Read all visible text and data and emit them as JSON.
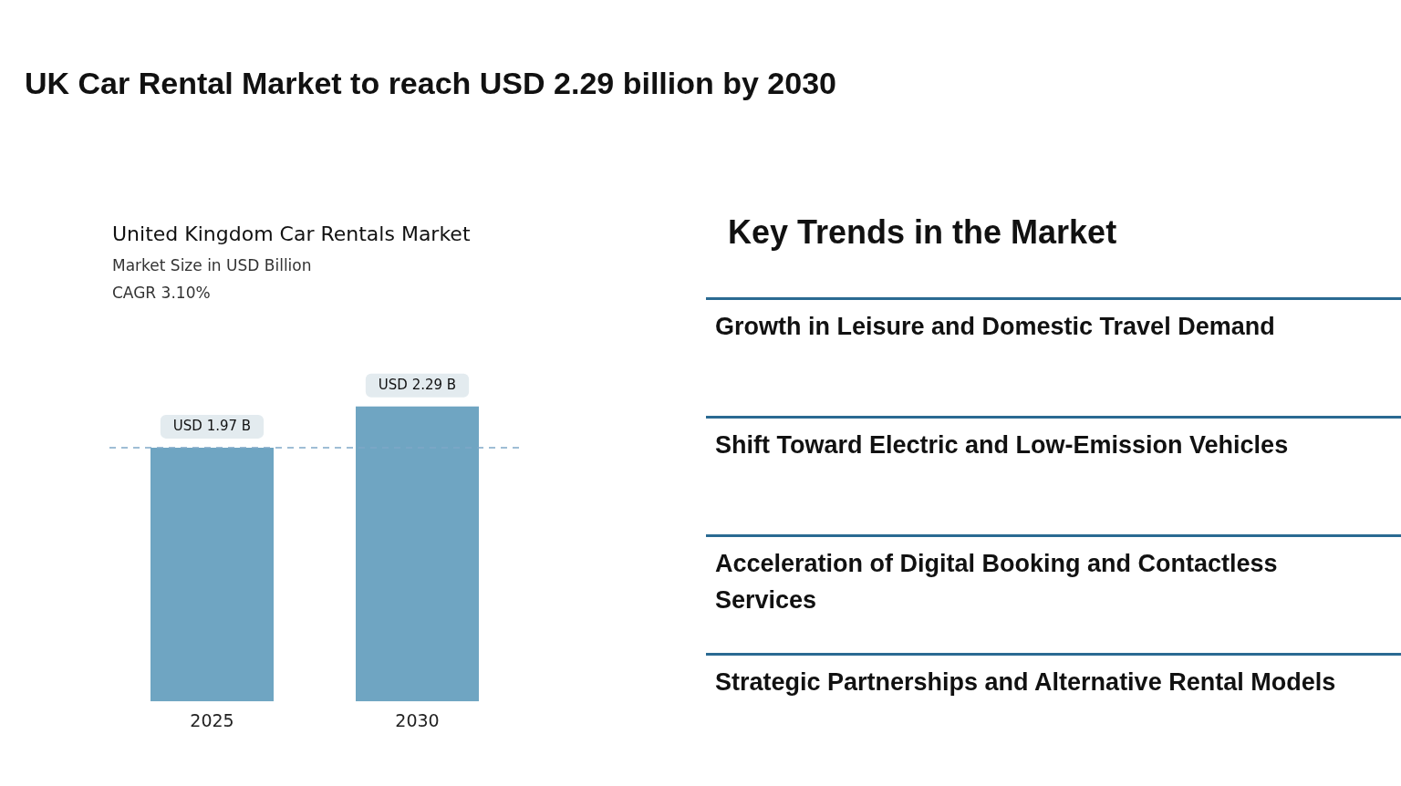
{
  "chart_data": [
    {
      "type": "bar",
      "title": "United Kingdom Car Rentals Market",
      "subtitle": "Market Size in USD Billion",
      "annotations": [
        "UK Car Rental Market to reach USD 2.29 billion by 2030",
        "CAGR 3.10%"
      ],
      "categories": [
        "2025",
        "2030"
      ],
      "values": [
        1.97,
        2.29
      ],
      "color": "#6fa5c2",
      "value_labels": [
        "USD 1.97 B",
        "USD 2.29 B"
      ],
      "ref_lines": [
        {
          "axis": "y",
          "value": 1.97,
          "color": "#7fa8c8",
          "line_style": "dashed"
        }
      ],
      "tick_labels": "x"
    },
    {
      "type": "other",
      "title": "Key Trends in the Market",
      "annotations": [
        "Growth in Leisure and Domestic Travel Demand",
        "Shift Toward Electric and Low-Emission Vehicles",
        "Acceleration of Digital Booking and Contactless Services",
        "Strategic Partnerships and Alternative Rental Models"
      ]
    }
  ]
}
